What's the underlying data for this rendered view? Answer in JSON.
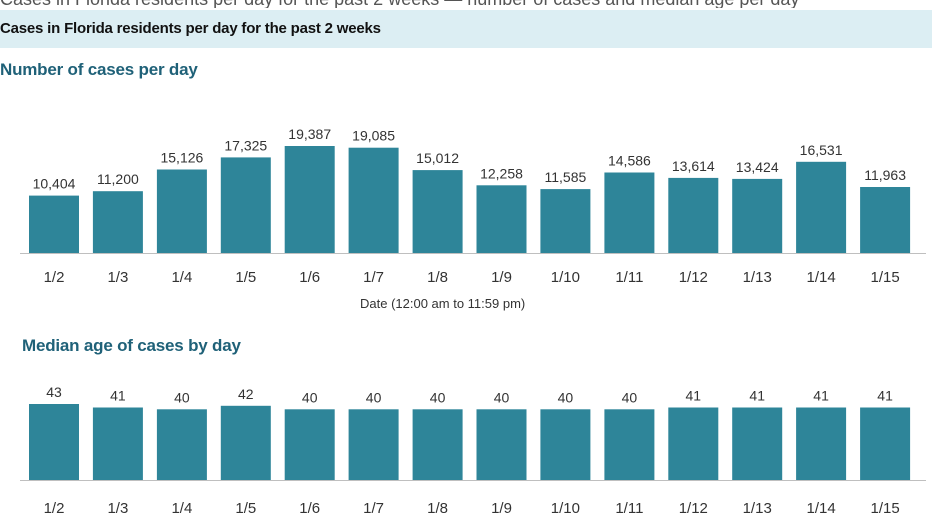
{
  "page": {
    "header": "Cases in Florida residents per day for the past 2 weeks"
  },
  "charts": [
    {
      "id": "cases",
      "title": "Number of cases per day",
      "xlabel": "Date (12:00 am to 11:59 pm)"
    },
    {
      "id": "median-age",
      "title": "Median age of cases by day",
      "xlabel": ""
    }
  ],
  "colors": {
    "bar": "#2e8599",
    "section_title": "#1f6178",
    "header_bg": "#dceef3"
  },
  "chart_data": [
    {
      "type": "bar",
      "title": "Number of cases per day",
      "xlabel": "Date (12:00 am to 11:59 pm)",
      "ylabel": "",
      "categories": [
        "1/2",
        "1/3",
        "1/4",
        "1/5",
        "1/6",
        "1/7",
        "1/8",
        "1/9",
        "1/10",
        "1/11",
        "1/12",
        "1/13",
        "1/14",
        "1/15"
      ],
      "values": [
        10404,
        11200,
        15126,
        17325,
        19387,
        19085,
        15012,
        12258,
        11585,
        14586,
        13614,
        13424,
        16531,
        11963
      ],
      "value_labels": [
        "10,404",
        "11,200",
        "15,126",
        "17,325",
        "19,387",
        "19,085",
        "15,012",
        "12,258",
        "11,585",
        "14,586",
        "13,614",
        "13,424",
        "16,531",
        "11,963"
      ],
      "ylim": [
        0,
        19387
      ],
      "grid": false,
      "legend": "none"
    },
    {
      "type": "bar",
      "title": "Median age of cases by day",
      "xlabel": "",
      "ylabel": "",
      "categories": [
        "1/2",
        "1/3",
        "1/4",
        "1/5",
        "1/6",
        "1/7",
        "1/8",
        "1/9",
        "1/10",
        "1/11",
        "1/12",
        "1/13",
        "1/14",
        "1/15"
      ],
      "values": [
        43,
        41,
        40,
        42,
        40,
        40,
        40,
        40,
        40,
        40,
        41,
        41,
        41,
        41
      ],
      "value_labels": [
        "43",
        "41",
        "40",
        "42",
        "40",
        "40",
        "40",
        "40",
        "40",
        "40",
        "41",
        "41",
        "41",
        "41"
      ],
      "ylim": [
        0,
        43
      ],
      "grid": false,
      "legend": "none"
    }
  ]
}
